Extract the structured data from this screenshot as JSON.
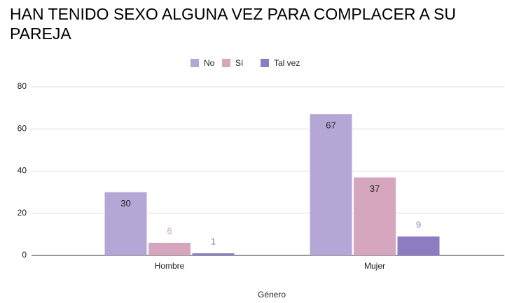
{
  "chart_data": {
    "type": "bar",
    "title": "HAN TENIDO SEXO ALGUNA VEZ PARA COMPLACER A SU PAREJA",
    "x_label": "Género",
    "categories": [
      "Hombre",
      "Mujer"
    ],
    "series": [
      {
        "name": "No",
        "color": "#b4a7d6",
        "values": [
          30,
          67
        ]
      },
      {
        "name": "Sí",
        "color": "#d5a6bd",
        "values": [
          6,
          37
        ]
      },
      {
        "name": "Tal vez",
        "color": "#8e7cc3",
        "values": [
          1,
          9
        ]
      }
    ],
    "ylim": [
      0,
      80
    ],
    "yticks": [
      0,
      20,
      40,
      60,
      80
    ],
    "grid": true,
    "legend": "top"
  }
}
